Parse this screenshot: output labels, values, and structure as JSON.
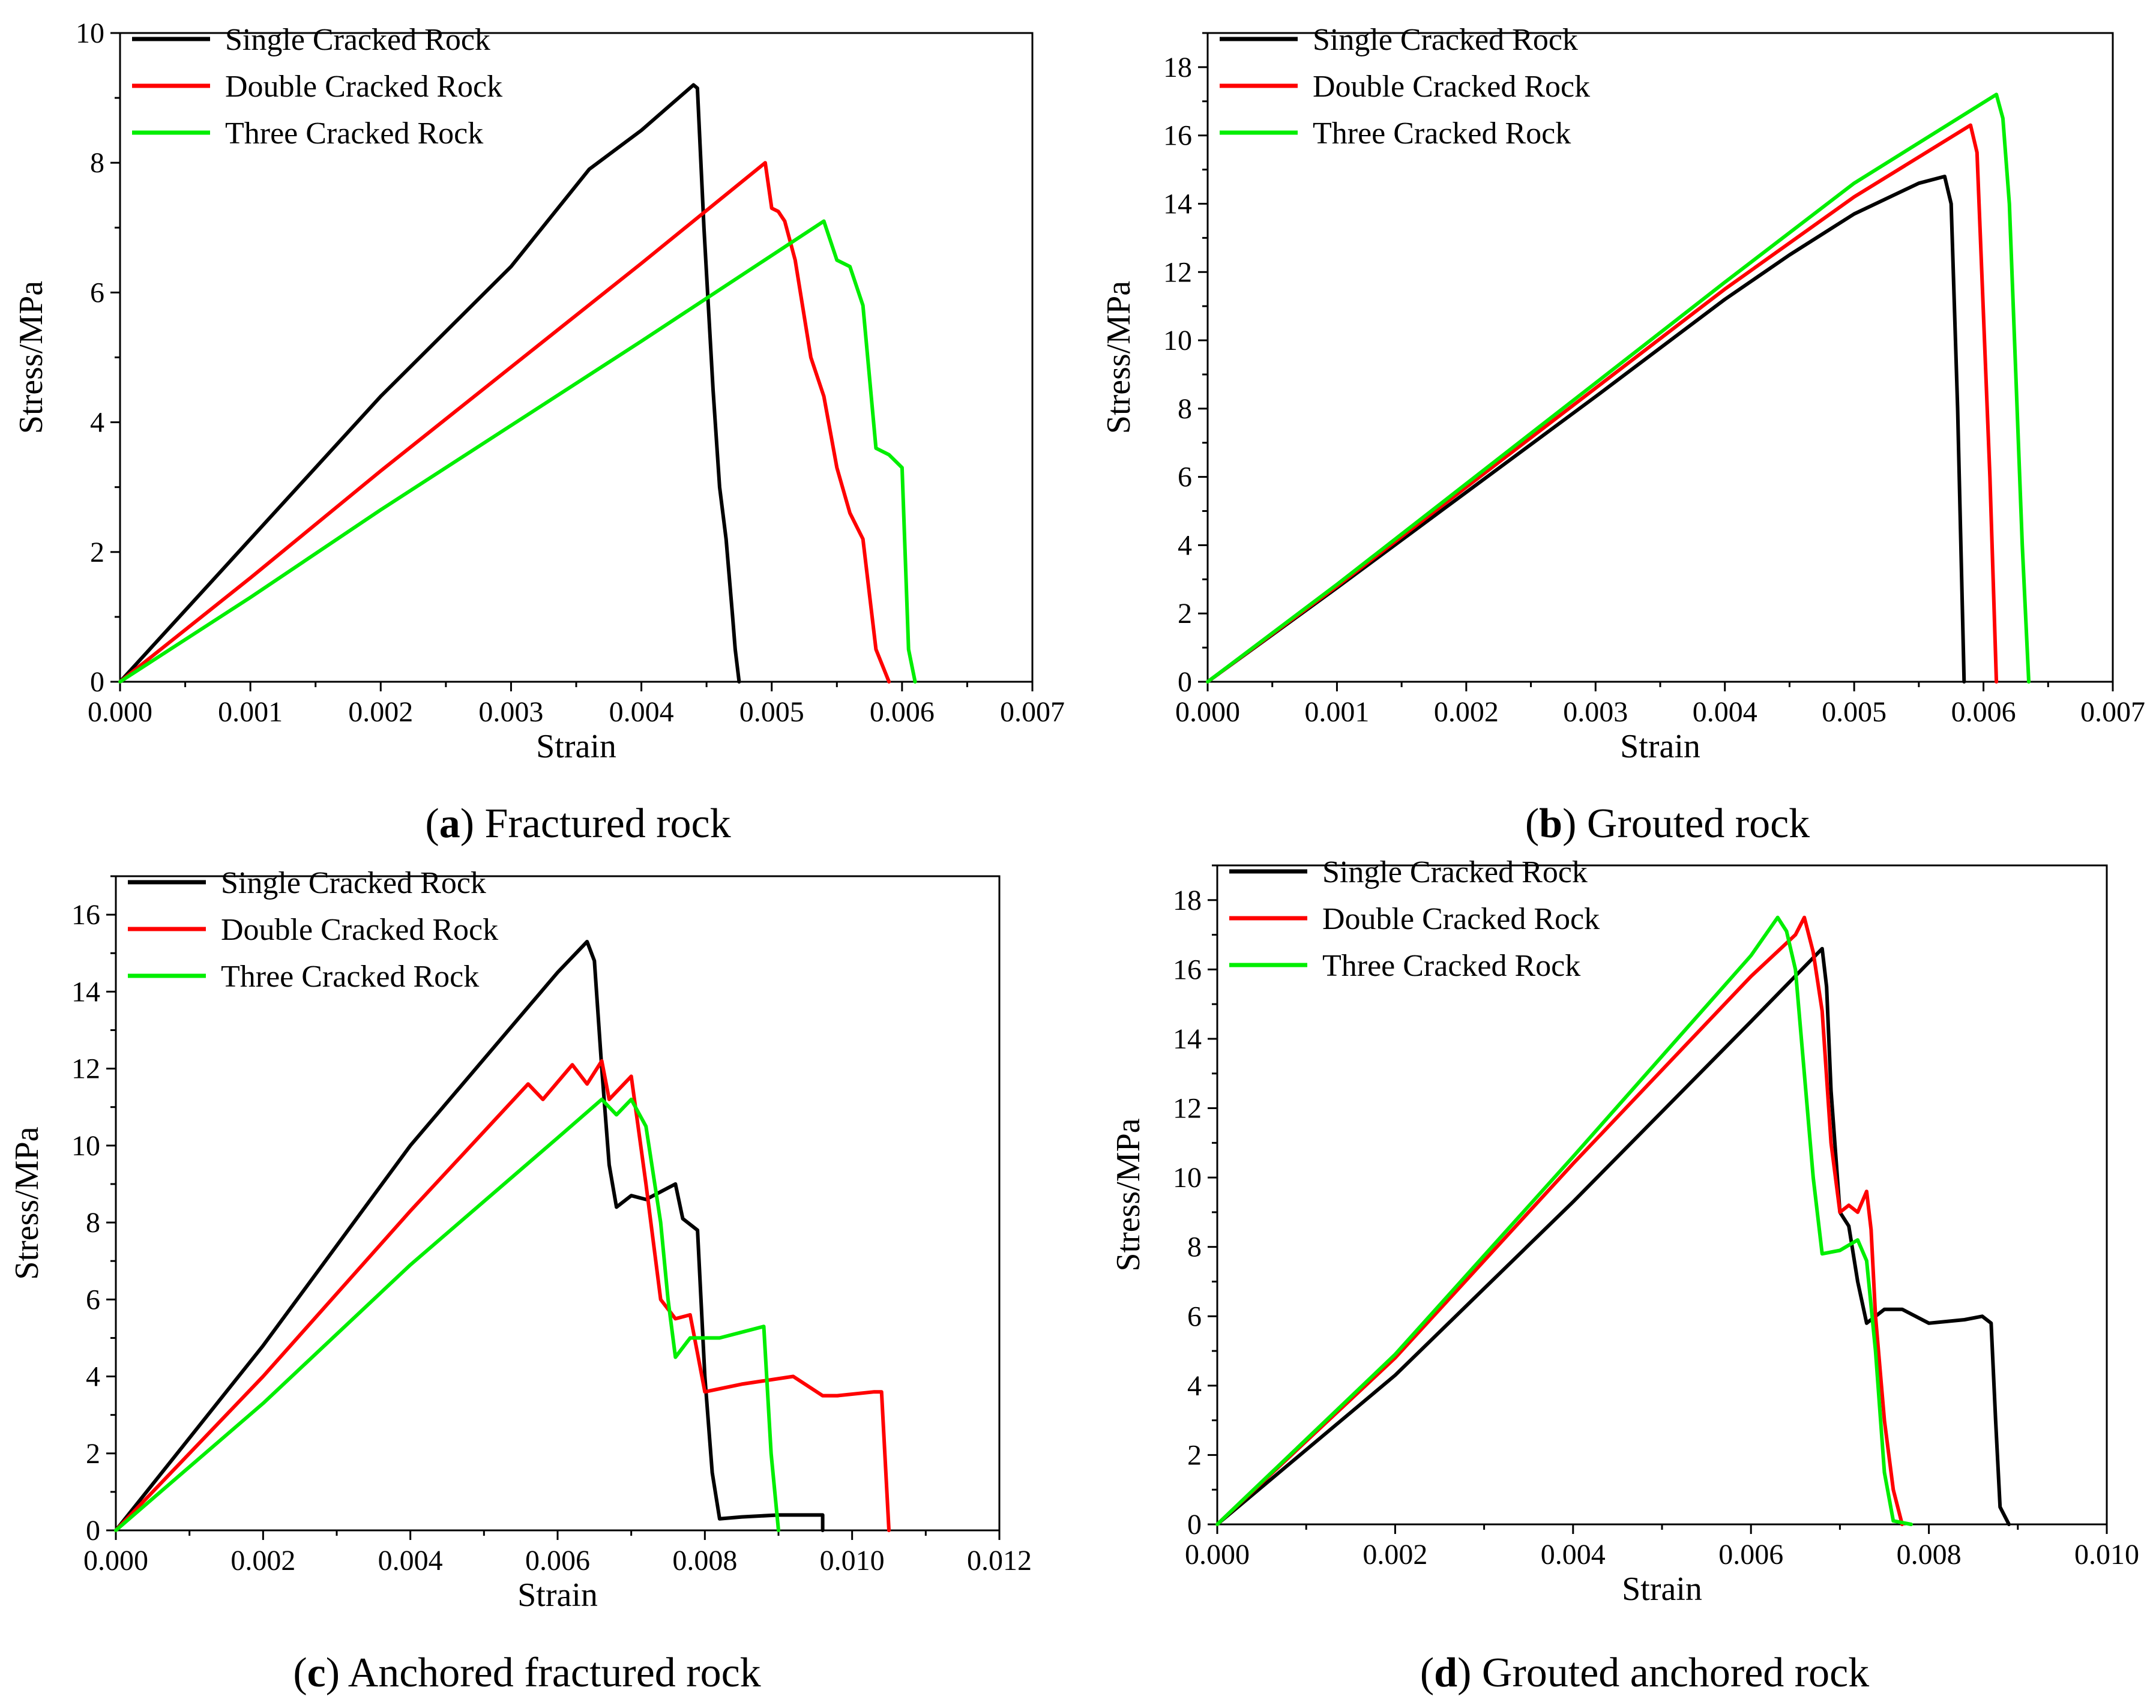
{
  "figure": {
    "panels": [
      {
        "caption_letter": "a",
        "caption_text": "Fractured rock"
      },
      {
        "caption_letter": "b",
        "caption_text": "Grouted rock"
      },
      {
        "caption_letter": "c",
        "caption_text": "Anchored fractured rock"
      },
      {
        "caption_letter": "d",
        "caption_text": "Grouted anchored rock"
      }
    ]
  },
  "colors": {
    "single": "#000000",
    "double": "#ff0000",
    "three": "#00ee00"
  },
  "chart_data": [
    {
      "type": "line",
      "title": "(a) Fractured rock",
      "xlabel": "Strain",
      "ylabel": "Stress/MPa",
      "xlim": [
        0,
        0.007
      ],
      "ylim": [
        0,
        10
      ],
      "xticks": [
        "0.000",
        "0.001",
        "0.002",
        "0.003",
        "0.004",
        "0.005",
        "0.006",
        "0.007"
      ],
      "yticks": [
        "0",
        "2",
        "4",
        "6",
        "8",
        "10"
      ],
      "legend": "top-left",
      "series": [
        {
          "name": "Single Cracked Rock",
          "color": "#000000",
          "x": [
            0,
            0.001,
            0.002,
            0.003,
            0.0036,
            0.0037,
            0.004,
            0.0042,
            0.0044,
            0.00443,
            0.00448,
            0.00455,
            0.0046,
            0.00465,
            0.0047,
            0.00472,
            0.00475
          ],
          "y": [
            0,
            2.2,
            4.4,
            6.4,
            7.9,
            8.05,
            8.5,
            8.85,
            9.2,
            9.15,
            7.0,
            4.5,
            3.0,
            2.2,
            1.0,
            0.5,
            0
          ]
        },
        {
          "name": "Double Cracked Rock",
          "color": "#ff0000",
          "x": [
            0,
            0.001,
            0.002,
            0.003,
            0.004,
            0.00495,
            0.005,
            0.00505,
            0.0051,
            0.00518,
            0.0053,
            0.0054,
            0.0055,
            0.0056,
            0.0057,
            0.0058,
            0.0059
          ],
          "y": [
            0,
            1.6,
            3.25,
            4.85,
            6.45,
            8.0,
            7.3,
            7.25,
            7.1,
            6.5,
            5.0,
            4.4,
            3.3,
            2.6,
            2.2,
            0.5,
            0
          ]
        },
        {
          "name": "Three Cracked Rock",
          "color": "#00ee00",
          "x": [
            0,
            0.001,
            0.002,
            0.003,
            0.004,
            0.0054,
            0.0055,
            0.0056,
            0.0057,
            0.0058,
            0.0059,
            0.006,
            0.00605,
            0.0061
          ],
          "y": [
            0,
            1.3,
            2.65,
            3.95,
            5.25,
            7.1,
            6.5,
            6.4,
            5.8,
            3.6,
            3.5,
            3.3,
            0.5,
            0
          ]
        }
      ]
    },
    {
      "type": "line",
      "title": "(b) Grouted rock",
      "xlabel": "Strain",
      "ylabel": "Stress/MPa",
      "xlim": [
        0,
        0.007
      ],
      "ylim": [
        0,
        19
      ],
      "xticks": [
        "0.000",
        "0.001",
        "0.002",
        "0.003",
        "0.004",
        "0.005",
        "0.006",
        "0.007"
      ],
      "yticks": [
        "0",
        "2",
        "4",
        "6",
        "8",
        "10",
        "12",
        "14",
        "16",
        "18"
      ],
      "legend": "top-left",
      "series": [
        {
          "name": "Single Cracked Rock",
          "color": "#000000",
          "x": [
            0,
            0.001,
            0.002,
            0.003,
            0.004,
            0.0045,
            0.005,
            0.0055,
            0.0057,
            0.00575,
            0.0058,
            0.00585
          ],
          "y": [
            0,
            2.75,
            5.55,
            8.35,
            11.2,
            12.5,
            13.7,
            14.6,
            14.8,
            14.0,
            8.0,
            0
          ]
        },
        {
          "name": "Double Cracked Rock",
          "color": "#ff0000",
          "x": [
            0,
            0.001,
            0.002,
            0.003,
            0.004,
            0.005,
            0.0059,
            0.00595,
            0.00605,
            0.0061
          ],
          "y": [
            0,
            2.8,
            5.7,
            8.6,
            11.5,
            14.2,
            16.3,
            15.5,
            6.0,
            0
          ]
        },
        {
          "name": "Three Cracked Rock",
          "color": "#00ee00",
          "x": [
            0,
            0.001,
            0.002,
            0.003,
            0.004,
            0.005,
            0.0061,
            0.00615,
            0.0062,
            0.0063,
            0.00635
          ],
          "y": [
            0,
            2.85,
            5.8,
            8.75,
            11.7,
            14.6,
            17.2,
            16.5,
            14.0,
            4.0,
            0
          ]
        }
      ]
    },
    {
      "type": "line",
      "title": "(c) Anchored fractured rock",
      "xlabel": "Strain",
      "ylabel": "Stress/MPa",
      "xlim": [
        0,
        0.012
      ],
      "ylim": [
        0,
        17
      ],
      "xticks": [
        "0.000",
        "0.002",
        "0.004",
        "0.006",
        "0.008",
        "0.010",
        "0.012"
      ],
      "yticks": [
        "0",
        "2",
        "4",
        "6",
        "8",
        "10",
        "12",
        "14",
        "16"
      ],
      "legend": "top-left",
      "series": [
        {
          "name": "Single Cracked Rock",
          "color": "#000000",
          "x": [
            0,
            0.002,
            0.004,
            0.006,
            0.0064,
            0.0065,
            0.0066,
            0.0067,
            0.0068,
            0.007,
            0.0072,
            0.0074,
            0.0076,
            0.0077,
            0.0079,
            0.008,
            0.0081,
            0.0082,
            0.0085,
            0.009,
            0.0096,
            0.0096
          ],
          "y": [
            0,
            4.8,
            10.0,
            14.5,
            15.3,
            14.8,
            12.0,
            9.5,
            8.4,
            8.7,
            8.6,
            8.8,
            9.0,
            8.1,
            7.8,
            4.0,
            1.5,
            0.3,
            0.35,
            0.4,
            0.4,
            0
          ]
        },
        {
          "name": "Double Cracked Rock",
          "color": "#ff0000",
          "x": [
            0,
            0.002,
            0.004,
            0.0056,
            0.0058,
            0.0062,
            0.0064,
            0.0066,
            0.0067,
            0.007,
            0.0072,
            0.0074,
            0.0076,
            0.0078,
            0.0079,
            0.008,
            0.0085,
            0.0092,
            0.0096,
            0.0098,
            0.0103,
            0.0104,
            0.0105
          ],
          "y": [
            0,
            4.0,
            8.3,
            11.6,
            11.2,
            12.1,
            11.6,
            12.2,
            11.2,
            11.8,
            9.0,
            6.0,
            5.5,
            5.6,
            4.6,
            3.6,
            3.8,
            4.0,
            3.5,
            3.5,
            3.6,
            3.6,
            0
          ]
        },
        {
          "name": "Three Cracked Rock",
          "color": "#00ee00",
          "x": [
            0,
            0.002,
            0.004,
            0.006,
            0.0066,
            0.0068,
            0.007,
            0.0072,
            0.0074,
            0.0075,
            0.0076,
            0.0078,
            0.0082,
            0.0088,
            0.0089,
            0.009
          ],
          "y": [
            0,
            3.3,
            6.9,
            10.2,
            11.2,
            10.8,
            11.2,
            10.5,
            8.0,
            6.0,
            4.5,
            5.0,
            5.0,
            5.3,
            2.0,
            0
          ]
        }
      ]
    },
    {
      "type": "line",
      "title": "(d) Grouted anchored rock",
      "xlabel": "Strain",
      "ylabel": "Stress/MPa",
      "xlim": [
        0,
        0.01
      ],
      "ylim": [
        0,
        19
      ],
      "xticks": [
        "0.000",
        "0.002",
        "0.004",
        "0.006",
        "0.008",
        "0.010"
      ],
      "yticks": [
        "0",
        "2",
        "4",
        "6",
        "8",
        "10",
        "12",
        "14",
        "16",
        "18"
      ],
      "legend": "top-left",
      "series": [
        {
          "name": "Single Cracked Rock",
          "color": "#000000",
          "x": [
            0,
            0.002,
            0.004,
            0.006,
            0.0068,
            0.00685,
            0.0069,
            0.007,
            0.0071,
            0.0072,
            0.0073,
            0.0075,
            0.0077,
            0.008,
            0.0084,
            0.0086,
            0.0087,
            0.00875,
            0.0088,
            0.0089
          ],
          "y": [
            0,
            4.3,
            9.3,
            14.5,
            16.6,
            15.5,
            12.5,
            9.0,
            8.6,
            7.0,
            5.8,
            6.2,
            6.2,
            5.8,
            5.9,
            6.0,
            5.8,
            3.0,
            0.5,
            0
          ]
        },
        {
          "name": "Double Cracked Rock",
          "color": "#ff0000",
          "x": [
            0,
            0.002,
            0.004,
            0.006,
            0.0065,
            0.0066,
            0.0067,
            0.0068,
            0.0069,
            0.007,
            0.0071,
            0.0072,
            0.0073,
            0.00735,
            0.0074,
            0.0075,
            0.0076,
            0.0077
          ],
          "y": [
            0,
            4.8,
            10.4,
            15.8,
            17.0,
            17.5,
            16.5,
            14.8,
            11.0,
            9.0,
            9.2,
            9.0,
            9.6,
            8.5,
            6.0,
            3.0,
            1.0,
            0
          ]
        },
        {
          "name": "Three Cracked Rock",
          "color": "#00ee00",
          "x": [
            0,
            0.002,
            0.004,
            0.006,
            0.0063,
            0.0064,
            0.0065,
            0.0066,
            0.0067,
            0.0068,
            0.007,
            0.0072,
            0.0073,
            0.0074,
            0.0075,
            0.0076,
            0.0078
          ],
          "y": [
            0,
            4.9,
            10.6,
            16.4,
            17.5,
            17.1,
            16.0,
            13.0,
            10.0,
            7.8,
            7.9,
            8.2,
            7.6,
            5.0,
            1.5,
            0.1,
            0
          ]
        }
      ]
    }
  ]
}
